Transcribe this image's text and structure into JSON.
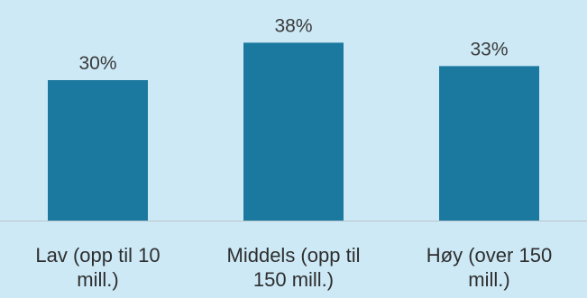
{
  "chart_data": {
    "type": "bar",
    "categories": [
      [
        "Lav (opp til 10",
        "mill.)"
      ],
      [
        "Middels (opp til",
        "150 mill.)"
      ],
      [
        "Høy (over 150",
        "mill.)"
      ]
    ],
    "values": [
      30,
      38,
      33
    ],
    "value_labels": [
      "30%",
      "38%",
      "33%"
    ],
    "title": "",
    "xlabel": "",
    "ylabel": "",
    "ylim": [
      0,
      42
    ],
    "grid": false,
    "legend": "none",
    "colors": {
      "bar": "#1b79a0",
      "background": "#cde9f6",
      "axis": "#b9c6cc"
    }
  }
}
